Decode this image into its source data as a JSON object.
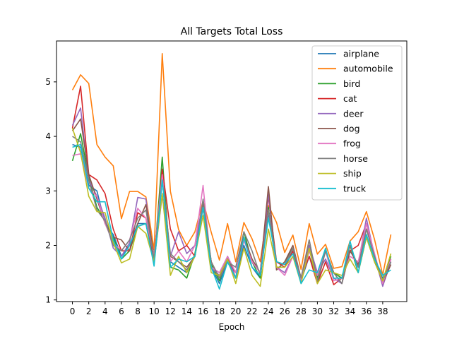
{
  "chart_data": {
    "type": "line",
    "title": "All Targets Total Loss",
    "xlabel": "Epoch",
    "ylabel": "",
    "xlim": [
      -1.95,
      40.95
    ],
    "ylim": [
      0.97,
      5.75
    ],
    "xticks": [
      0,
      2,
      4,
      6,
      8,
      10,
      12,
      14,
      16,
      18,
      20,
      22,
      24,
      26,
      28,
      30,
      32,
      34,
      36,
      38
    ],
    "yticks": [
      1,
      2,
      3,
      4,
      5
    ],
    "legend": "top-right",
    "grid": false,
    "x": [
      0,
      1,
      2,
      3,
      4,
      5,
      6,
      7,
      8,
      9,
      10,
      11,
      12,
      13,
      14,
      15,
      16,
      17,
      18,
      19,
      20,
      21,
      22,
      23,
      24,
      25,
      26,
      27,
      28,
      29,
      30,
      31,
      32,
      33,
      34,
      35,
      36,
      37,
      38,
      39
    ],
    "series": [
      {
        "name": "airplane",
        "color": "#1f77b4",
        "values": [
          3.85,
          3.8,
          3.1,
          3.0,
          2.4,
          2.2,
          1.8,
          2.0,
          2.4,
          2.4,
          1.7,
          3.2,
          1.7,
          1.6,
          1.5,
          1.8,
          2.7,
          1.6,
          1.3,
          1.7,
          1.4,
          2.0,
          1.6,
          1.4,
          2.6,
          1.6,
          1.6,
          1.9,
          1.35,
          1.8,
          1.4,
          1.9,
          1.5,
          1.4,
          2.0,
          1.6,
          2.2,
          1.7,
          1.4,
          1.7
        ]
      },
      {
        "name": "automobile",
        "color": "#ff7f0e",
        "values": [
          4.85,
          5.13,
          4.97,
          3.85,
          3.62,
          3.46,
          2.49,
          2.99,
          2.99,
          2.89,
          1.92,
          5.52,
          2.99,
          2.29,
          2.0,
          2.25,
          2.82,
          2.24,
          1.73,
          2.4,
          1.7,
          2.42,
          2.12,
          1.7,
          2.73,
          2.42,
          1.87,
          2.19,
          1.56,
          2.4,
          1.84,
          2.02,
          1.58,
          1.61,
          2.08,
          2.25,
          2.62,
          2.11,
          1.46,
          2.2
        ]
      },
      {
        "name": "bird",
        "color": "#2ca02c",
        "values": [
          3.55,
          4.05,
          3.25,
          2.7,
          2.45,
          2.15,
          1.75,
          1.9,
          2.35,
          2.4,
          1.7,
          3.62,
          1.6,
          1.55,
          1.4,
          1.85,
          2.7,
          1.65,
          1.35,
          1.8,
          1.4,
          2.25,
          1.7,
          1.4,
          2.7,
          1.55,
          1.7,
          1.95,
          1.4,
          2.0,
          1.4,
          1.9,
          1.5,
          1.4,
          2.0,
          1.5,
          2.15,
          1.7,
          1.35,
          1.8
        ]
      },
      {
        "name": "cat",
        "color": "#d62728",
        "values": [
          4.15,
          4.92,
          3.3,
          3.2,
          2.95,
          2.3,
          1.9,
          1.9,
          2.6,
          2.5,
          1.7,
          3.4,
          2.3,
          1.9,
          2.0,
          1.8,
          2.7,
          1.7,
          1.4,
          1.7,
          1.5,
          2.1,
          1.7,
          1.5,
          2.9,
          1.7,
          1.6,
          1.9,
          1.4,
          1.8,
          1.3,
          1.7,
          1.28,
          1.4,
          1.9,
          2.0,
          2.4,
          1.8,
          1.3,
          1.75
        ]
      },
      {
        "name": "deer",
        "color": "#9467bd",
        "values": [
          4.2,
          4.52,
          3.2,
          2.9,
          2.5,
          1.95,
          1.8,
          2.05,
          2.88,
          2.85,
          1.7,
          2.92,
          1.8,
          2.25,
          1.85,
          2.0,
          2.8,
          1.6,
          1.45,
          1.8,
          1.4,
          2.1,
          1.7,
          1.5,
          2.95,
          1.6,
          1.5,
          1.8,
          1.4,
          2.0,
          1.5,
          1.75,
          1.4,
          1.3,
          1.9,
          1.65,
          2.5,
          1.8,
          1.25,
          1.7
        ]
      },
      {
        "name": "dog",
        "color": "#8c564b",
        "values": [
          4.1,
          4.32,
          3.3,
          2.85,
          2.4,
          2.15,
          2.1,
          1.9,
          2.4,
          2.75,
          1.8,
          3.25,
          1.8,
          1.7,
          1.6,
          1.8,
          2.75,
          1.7,
          1.4,
          1.75,
          1.5,
          2.15,
          1.75,
          1.5,
          3.08,
          1.55,
          1.7,
          2.0,
          1.4,
          2.1,
          1.3,
          1.9,
          1.5,
          1.3,
          1.9,
          1.65,
          2.3,
          1.8,
          1.3,
          1.65
        ]
      },
      {
        "name": "frog",
        "color": "#e377c2",
        "values": [
          3.65,
          3.68,
          3.05,
          2.9,
          2.4,
          2.05,
          1.9,
          2.1,
          2.68,
          2.5,
          1.8,
          3.3,
          1.7,
          1.9,
          1.7,
          2.0,
          3.1,
          1.6,
          1.5,
          1.8,
          1.5,
          2.1,
          1.7,
          1.5,
          2.65,
          1.6,
          1.45,
          1.8,
          1.35,
          1.9,
          1.45,
          1.9,
          1.35,
          1.4,
          1.8,
          1.7,
          2.4,
          1.85,
          1.3,
          1.75
        ]
      },
      {
        "name": "horse",
        "color": "#7f7f7f",
        "values": [
          4.0,
          3.9,
          3.2,
          2.65,
          2.45,
          2.0,
          1.9,
          2.1,
          2.5,
          2.65,
          1.75,
          3.2,
          1.85,
          1.7,
          1.55,
          1.8,
          2.85,
          1.7,
          1.4,
          1.7,
          1.6,
          2.25,
          1.9,
          1.45,
          2.65,
          1.7,
          1.65,
          1.95,
          1.4,
          2.1,
          1.35,
          1.9,
          1.5,
          1.3,
          2.0,
          1.6,
          2.3,
          1.8,
          1.35,
          1.7
        ]
      },
      {
        "name": "ship",
        "color": "#bcbd22",
        "values": [
          4.15,
          3.7,
          2.9,
          2.62,
          2.6,
          2.05,
          1.68,
          1.75,
          2.35,
          2.22,
          1.7,
          2.95,
          1.45,
          1.8,
          1.5,
          1.8,
          2.55,
          1.5,
          1.45,
          1.75,
          1.3,
          1.95,
          1.45,
          1.25,
          2.3,
          1.6,
          1.6,
          1.8,
          1.3,
          1.95,
          1.3,
          1.55,
          1.5,
          1.45,
          1.75,
          1.5,
          2.15,
          1.7,
          1.35,
          1.85
        ]
      },
      {
        "name": "truck",
        "color": "#17becf",
        "values": [
          3.8,
          3.85,
          3.05,
          2.8,
          2.8,
          2.1,
          1.75,
          2.0,
          2.35,
          2.4,
          1.62,
          3.2,
          1.6,
          1.75,
          1.7,
          1.8,
          2.7,
          1.6,
          1.2,
          1.7,
          1.4,
          2.15,
          1.6,
          1.45,
          2.5,
          1.7,
          1.65,
          1.85,
          1.3,
          1.55,
          1.5,
          1.95,
          1.4,
          1.4,
          2.08,
          1.5,
          2.2,
          1.75,
          1.45,
          1.55
        ]
      }
    ]
  }
}
